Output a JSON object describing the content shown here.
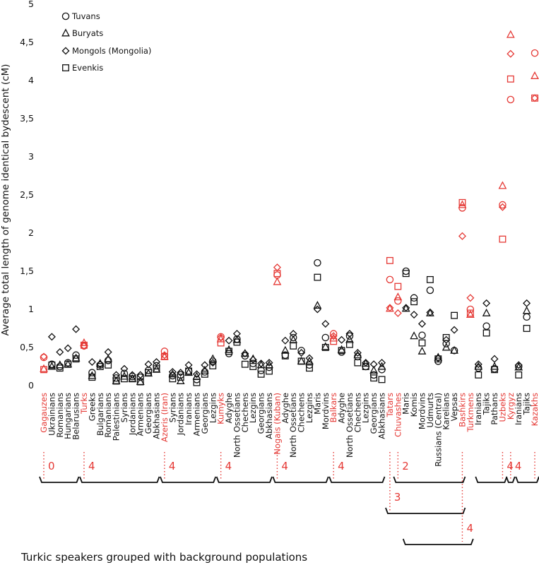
{
  "chart_data": {
    "type": "scatter",
    "ylabel": "Average total length of genome identical bydescent (cM)",
    "ylim": [
      0,
      5
    ],
    "yticks": [
      "0",
      "0,5",
      "1",
      "1,5",
      "2",
      "2,5",
      "3",
      "3,5",
      "4",
      "4,5",
      "5"
    ],
    "grid": false,
    "legend_position": "top-left",
    "series": [
      {
        "name": "Tuvans",
        "marker": "circle"
      },
      {
        "name": "Buryats",
        "marker": "triangle"
      },
      {
        "name": "Mongols (Mongolia)",
        "marker": "diamond"
      },
      {
        "name": "Evenkis",
        "marker": "square"
      }
    ],
    "value_order": [
      "Tuvans",
      "Buryats",
      "Mongols (Mongolia)",
      "Evenkis"
    ],
    "colors": {
      "turkic": "#e53935",
      "background": "#111111"
    },
    "populations": [
      {
        "name": "Gagauzes",
        "turkic": true,
        "values": [
          0.37,
          0.22,
          0.38,
          0.21
        ]
      },
      {
        "name": "Ukrainians",
        "turkic": false,
        "values": [
          0.28,
          0.25,
          0.64,
          0.27
        ]
      },
      {
        "name": "Romanians",
        "turkic": false,
        "values": [
          0.25,
          0.27,
          0.44,
          0.23
        ]
      },
      {
        "name": "Hungarians",
        "turkic": false,
        "values": [
          0.3,
          0.28,
          0.49,
          0.28
        ]
      },
      {
        "name": "Belarusians",
        "turkic": false,
        "values": [
          0.4,
          0.36,
          0.74,
          0.35
        ]
      },
      {
        "name": "Turks",
        "turkic": true,
        "values": [
          0.52,
          0.56,
          0.52,
          0.53
        ]
      },
      {
        "name": "Greeks",
        "turkic": false,
        "values": [
          0.17,
          0.13,
          0.31,
          0.11
        ]
      },
      {
        "name": "Bulgarians",
        "turkic": false,
        "values": [
          0.27,
          0.29,
          0.28,
          0.25
        ]
      },
      {
        "name": "Romanians",
        "turkic": false,
        "values": [
          0.33,
          0.35,
          0.44,
          0.27
        ]
      },
      {
        "name": "Palestinians",
        "turkic": false,
        "values": [
          0.1,
          0.06,
          0.14,
          0.06
        ]
      },
      {
        "name": "Syrians",
        "turkic": false,
        "values": [
          0.16,
          0.12,
          0.22,
          0.09
        ]
      },
      {
        "name": "Jordanians",
        "turkic": false,
        "values": [
          0.12,
          0.09,
          0.14,
          0.09
        ]
      },
      {
        "name": "Armenians",
        "turkic": false,
        "values": [
          0.11,
          0.05,
          0.14,
          0.05
        ]
      },
      {
        "name": "Georgians",
        "turkic": false,
        "values": [
          0.2,
          0.16,
          0.28,
          0.17
        ]
      },
      {
        "name": "Abkhasians",
        "turkic": false,
        "values": [
          0.26,
          0.21,
          0.31,
          0.22
        ]
      },
      {
        "name": "Azeris (Iran)",
        "turkic": true,
        "values": [
          0.45,
          0.38,
          0.4,
          0.38
        ]
      },
      {
        "name": "Syrians",
        "turkic": false,
        "values": [
          0.13,
          0.15,
          0.18,
          0.09
        ]
      },
      {
        "name": "Jordanians",
        "turkic": false,
        "values": [
          0.14,
          0.06,
          0.17,
          0.11
        ]
      },
      {
        "name": "Iranians",
        "turkic": false,
        "values": [
          0.19,
          0.17,
          0.27,
          0.19
        ]
      },
      {
        "name": "Armenians",
        "turkic": false,
        "values": [
          0.08,
          0.12,
          0.15,
          0.04
        ]
      },
      {
        "name": "Georgians",
        "turkic": false,
        "values": [
          0.18,
          0.2,
          0.27,
          0.15
        ]
      },
      {
        "name": "Lezgins",
        "turkic": false,
        "values": [
          0.32,
          0.35,
          0.3,
          0.26
        ]
      },
      {
        "name": "Kumyks",
        "turkic": true,
        "values": [
          0.64,
          0.61,
          0.63,
          0.56
        ]
      },
      {
        "name": "Adyghe",
        "turkic": false,
        "values": [
          0.42,
          0.47,
          0.59,
          0.45
        ]
      },
      {
        "name": "North Ossetians",
        "turkic": false,
        "values": [
          0.61,
          0.6,
          0.68,
          0.57
        ]
      },
      {
        "name": "Chechens",
        "turkic": false,
        "values": [
          0.39,
          0.42,
          0.42,
          0.28
        ]
      },
      {
        "name": "Lezgins",
        "turkic": false,
        "values": [
          0.29,
          0.35,
          0.34,
          0.25
        ]
      },
      {
        "name": "Georgians",
        "turkic": false,
        "values": [
          0.2,
          0.27,
          0.29,
          0.15
        ]
      },
      {
        "name": "Abkhasians",
        "turkic": false,
        "values": [
          0.24,
          0.27,
          0.3,
          0.19
        ]
      },
      {
        "name": "Nogais (Kuban)",
        "turkic": true,
        "values": [
          1.45,
          1.36,
          1.55,
          1.47
        ]
      },
      {
        "name": "Adyghe",
        "turkic": false,
        "values": [
          0.4,
          0.46,
          0.59,
          0.39
        ]
      },
      {
        "name": "North Ossetians",
        "turkic": false,
        "values": [
          0.63,
          0.6,
          0.68,
          0.52
        ]
      },
      {
        "name": "Chechens",
        "turkic": false,
        "values": [
          0.46,
          0.32,
          0.43,
          0.32
        ]
      },
      {
        "name": "Lezgins",
        "turkic": false,
        "values": [
          0.27,
          0.32,
          0.36,
          0.23
        ]
      },
      {
        "name": "Maris",
        "turkic": false,
        "values": [
          1.61,
          1.05,
          1.0,
          1.42
        ]
      },
      {
        "name": "Mordvins",
        "turkic": false,
        "values": [
          0.63,
          0.51,
          0.81,
          0.5
        ]
      },
      {
        "name": "Balkars",
        "turkic": true,
        "values": [
          0.68,
          0.62,
          0.65,
          0.58
        ]
      },
      {
        "name": "Adyghe",
        "turkic": false,
        "values": [
          0.44,
          0.47,
          0.6,
          0.46
        ]
      },
      {
        "name": "North Ossetians",
        "turkic": false,
        "values": [
          0.65,
          0.6,
          0.68,
          0.54
        ]
      },
      {
        "name": "Chechens",
        "turkic": false,
        "values": [
          0.38,
          0.4,
          0.43,
          0.3
        ]
      },
      {
        "name": "Lezgins",
        "turkic": false,
        "values": [
          0.25,
          0.29,
          0.3,
          0.25
        ]
      },
      {
        "name": "Georgians",
        "turkic": false,
        "values": [
          0.14,
          0.2,
          0.28,
          0.1
        ]
      },
      {
        "name": "Abkhasians",
        "turkic": false,
        "values": [
          0.21,
          0.25,
          0.3,
          0.08
        ]
      },
      {
        "name": "Tatars",
        "turkic": true,
        "values": [
          1.39,
          1.01,
          1.02,
          1.64
        ]
      },
      {
        "name": "Chuvashes",
        "turkic": true,
        "values": [
          1.11,
          1.16,
          0.95,
          1.3
        ]
      },
      {
        "name": "Maris",
        "turkic": false,
        "values": [
          1.5,
          1.01,
          1.02,
          1.47
        ]
      },
      {
        "name": "Komis",
        "turkic": false,
        "values": [
          1.15,
          0.65,
          0.93,
          1.1
        ]
      },
      {
        "name": "Mordvins",
        "turkic": false,
        "values": [
          0.66,
          0.45,
          0.81,
          0.56
        ]
      },
      {
        "name": "Udmurts",
        "turkic": false,
        "values": [
          1.25,
          0.95,
          0.96,
          1.39
        ]
      },
      {
        "name": "Russians (Central)",
        "turkic": false,
        "values": [
          0.32,
          0.37,
          0.36,
          0.35
        ]
      },
      {
        "name": "Karelians",
        "turkic": false,
        "values": [
          0.55,
          0.5,
          0.6,
          0.63
        ]
      },
      {
        "name": "Vepsas",
        "turkic": false,
        "values": [
          0.46,
          0.46,
          0.73,
          0.92
        ]
      },
      {
        "name": "Bashkirs",
        "turkic": true,
        "values": [
          2.33,
          2.37,
          1.96,
          2.4
        ]
      },
      {
        "name": "Turkmens",
        "turkic": true,
        "values": [
          1.0,
          0.93,
          1.15,
          0.95
        ]
      },
      {
        "name": "Iranians",
        "turkic": false,
        "values": [
          0.23,
          0.25,
          0.28,
          0.14
        ]
      },
      {
        "name": "Tajiks",
        "turkic": false,
        "values": [
          0.78,
          0.95,
          1.08,
          0.69
        ]
      },
      {
        "name": "Pathans",
        "turkic": false,
        "values": [
          0.22,
          0.25,
          0.35,
          0.21
        ]
      },
      {
        "name": "Uzbeks",
        "turkic": true,
        "values": [
          2.37,
          2.62,
          2.34,
          1.92
        ]
      },
      {
        "name": "Kyrgyz",
        "turkic": true,
        "values": [
          3.75,
          4.6,
          4.35,
          4.02
        ]
      },
      {
        "name": "Iranians",
        "turkic": false,
        "values": [
          0.25,
          0.24,
          0.27,
          0.14
        ]
      },
      {
        "name": "Tajiks",
        "turkic": false,
        "values": [
          0.9,
          0.98,
          1.08,
          0.75
        ]
      },
      {
        "name": "Kazakhs",
        "turkic": true,
        "values": [
          4.36,
          4.06,
          3.77,
          3.77
        ]
      }
    ],
    "groups": [
      {
        "label": "0",
        "start": 0,
        "end": 4
      },
      {
        "label": "4",
        "start": 5,
        "end": 14
      },
      {
        "label": "4",
        "start": 15,
        "end": 21
      },
      {
        "label": "4",
        "start": 22,
        "end": 28
      },
      {
        "label": "4",
        "start": 29,
        "end": 35
      },
      {
        "label": "4",
        "start": 36,
        "end": 42
      },
      {
        "label": "2",
        "start": 44,
        "end": 52
      },
      {
        "label": "3",
        "start": 43,
        "end": 52
      },
      {
        "label": "4",
        "start": 45,
        "end": 53
      },
      {
        "label": "4",
        "start": 54,
        "end": 57
      },
      {
        "label": "4",
        "start": 58,
        "end": 58
      },
      {
        "label": "4",
        "start": 59,
        "end": 61
      },
      {
        "label": "4",
        "start": 62,
        "end": 62
      }
    ],
    "caption": "Turkic speakers grouped with background populations"
  }
}
